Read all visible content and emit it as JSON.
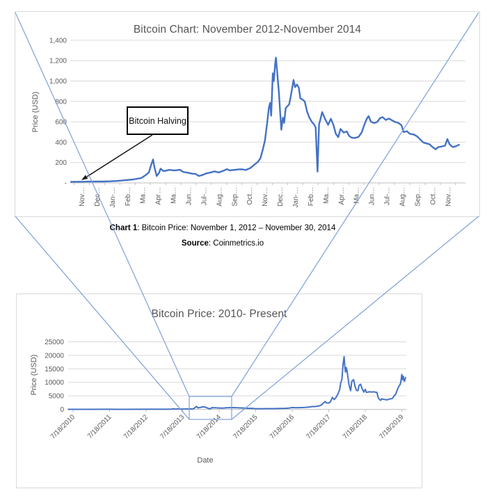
{
  "figure": {
    "caption_label": "Chart 1",
    "caption_text": ": Bitcoin Price: November 1, 2012 – November 30, 2014",
    "source_label": "Source",
    "source_text": ": Coinmetrics.io"
  },
  "colors": {
    "price_line": "#4472C4",
    "gridline": "#D9D9D9",
    "axis_line": "#BFBFBF",
    "tick_text": "#595959",
    "title_text": "#545454",
    "connector_blue": "#7E9FD8",
    "annotation_border": "#000000"
  },
  "chart_data": [
    {
      "id": "top",
      "type": "line",
      "title": "Bitcoin Chart: November 2012-November 2014",
      "xlabel": "",
      "ylabel": "Price (USD)",
      "ylim": [
        0,
        1400
      ],
      "ytick_step": 200,
      "ytick_labels": [
        "-",
        "200",
        "400",
        "600",
        "800",
        "1,000",
        "1,200",
        "1,400"
      ],
      "xtick_labels": [
        "Nov…",
        "Dec…",
        "Jan-…",
        "Feb…",
        "Ma…",
        "Apr…",
        "Ma…",
        "Jun…",
        "Jul-…",
        "Aug…",
        "Sep…",
        "Oct…",
        "Nov…",
        "Dec…",
        "Jan-…",
        "Feb…",
        "Ma…",
        "Apr…",
        "Ma…",
        "Jun…",
        "Jul-…",
        "Aug…",
        "Sep…",
        "Oct…",
        "Nov…"
      ],
      "grid": true,
      "legend": false,
      "annotation": {
        "text": "Bitcoin Halving",
        "arrow_points_to": "late November 2012 on the price line"
      },
      "series": [
        {
          "name": "Bitcoin price (USD)",
          "x_unit": "months since Nov 1 2012",
          "points": [
            [
              0,
              11
            ],
            [
              0.5,
              11.5
            ],
            [
              0.9,
              12.4
            ],
            [
              1,
              13
            ],
            [
              1.5,
              13.4
            ],
            [
              2,
              13.5
            ],
            [
              2.5,
              15.5
            ],
            [
              3,
              20
            ],
            [
              3.6,
              29
            ],
            [
              4,
              34
            ],
            [
              4.5,
              47
            ],
            [
              4.8,
              77
            ],
            [
              5,
              104
            ],
            [
              5.15,
              180
            ],
            [
              5.27,
              230
            ],
            [
              5.35,
              160
            ],
            [
              5.5,
              68
            ],
            [
              5.65,
              98
            ],
            [
              5.75,
              140
            ],
            [
              5.9,
              120
            ],
            [
              6,
              117
            ],
            [
              6.3,
              128
            ],
            [
              6.6,
              122
            ],
            [
              7,
              129
            ],
            [
              7.2,
              108
            ],
            [
              7.5,
              100
            ],
            [
              7.8,
              90
            ],
            [
              8,
              88
            ],
            [
              8.2,
              68
            ],
            [
              8.4,
              76
            ],
            [
              8.7,
              94
            ],
            [
              9,
              104
            ],
            [
              9.2,
              113
            ],
            [
              9.5,
              103
            ],
            [
              9.8,
              120
            ],
            [
              10,
              135
            ],
            [
              10.2,
              123
            ],
            [
              10.5,
              128
            ],
            [
              10.8,
              134
            ],
            [
              11,
              133
            ],
            [
              11.2,
              126
            ],
            [
              11.5,
              145
            ],
            [
              11.8,
              183
            ],
            [
              12,
              207
            ],
            [
              12.15,
              240
            ],
            [
              12.3,
              320
            ],
            [
              12.45,
              420
            ],
            [
              12.6,
              600
            ],
            [
              12.7,
              740
            ],
            [
              12.78,
              785
            ],
            [
              12.85,
              660
            ],
            [
              12.95,
              1075
            ],
            [
              13.02,
              1000
            ],
            [
              13.1,
              1160
            ],
            [
              13.15,
              1230
            ],
            [
              13.25,
              1055
            ],
            [
              13.35,
              880
            ],
            [
              13.42,
              700
            ],
            [
              13.5,
              522
            ],
            [
              13.6,
              640
            ],
            [
              13.68,
              590
            ],
            [
              13.78,
              735
            ],
            [
              13.9,
              755
            ],
            [
              14,
              770
            ],
            [
              14.1,
              845
            ],
            [
              14.2,
              935
            ],
            [
              14.28,
              1010
            ],
            [
              14.38,
              940
            ],
            [
              14.5,
              965
            ],
            [
              14.62,
              935
            ],
            [
              14.72,
              830
            ],
            [
              14.85,
              820
            ],
            [
              15,
              800
            ],
            [
              15.15,
              700
            ],
            [
              15.3,
              640
            ],
            [
              15.45,
              600
            ],
            [
              15.6,
              575
            ],
            [
              15.7,
              545
            ],
            [
              15.82,
              111
            ],
            [
              15.92,
              575
            ],
            [
              16,
              620
            ],
            [
              16.12,
              695
            ],
            [
              16.3,
              630
            ],
            [
              16.5,
              570
            ],
            [
              16.68,
              630
            ],
            [
              16.85,
              565
            ],
            [
              17,
              480
            ],
            [
              17.15,
              450
            ],
            [
              17.3,
              530
            ],
            [
              17.5,
              495
            ],
            [
              17.7,
              505
            ],
            [
              17.85,
              462
            ],
            [
              18,
              445
            ],
            [
              18.2,
              440
            ],
            [
              18.45,
              452
            ],
            [
              18.65,
              495
            ],
            [
              18.85,
              580
            ],
            [
              19,
              635
            ],
            [
              19.1,
              655
            ],
            [
              19.25,
              600
            ],
            [
              19.45,
              588
            ],
            [
              19.65,
              598
            ],
            [
              19.85,
              638
            ],
            [
              20,
              645
            ],
            [
              20.2,
              618
            ],
            [
              20.4,
              632
            ],
            [
              20.6,
              615
            ],
            [
              20.8,
              598
            ],
            [
              21,
              590
            ],
            [
              21.2,
              568
            ],
            [
              21.35,
              498
            ],
            [
              21.55,
              508
            ],
            [
              21.75,
              482
            ],
            [
              22,
              475
            ],
            [
              22.2,
              458
            ],
            [
              22.4,
              428
            ],
            [
              22.6,
              398
            ],
            [
              22.8,
              388
            ],
            [
              23,
              380
            ],
            [
              23.2,
              352
            ],
            [
              23.4,
              330
            ],
            [
              23.55,
              350
            ],
            [
              23.75,
              356
            ],
            [
              24,
              365
            ],
            [
              24.15,
              430
            ],
            [
              24.3,
              378
            ],
            [
              24.5,
              352
            ],
            [
              24.7,
              360
            ],
            [
              24.9,
              375
            ]
          ]
        }
      ]
    },
    {
      "id": "bottom",
      "type": "line",
      "title": "Bitcoin Price: 2010- Present",
      "xlabel": "Date",
      "ylabel": "Price (USD)",
      "ylim": [
        0,
        25000
      ],
      "ytick_step": 5000,
      "ytick_labels": [
        "0",
        "5000",
        "10000",
        "15000",
        "20000",
        "25000"
      ],
      "xtick_labels": [
        "7/18/2010",
        "7/18/2011",
        "7/18/2012",
        "7/18/2013",
        "7/18/2014",
        "7/18/2015",
        "7/18/2016",
        "7/18/2017",
        "7/18/2018",
        "7/18/2019"
      ],
      "grid": true,
      "legend": false,
      "highlight_rectangle": "Nov 2012 - Nov 2014 region, linked by lines to the chart above",
      "series": [
        {
          "name": "Bitcoin price (USD)",
          "x_unit": "years since 7/18/2010",
          "points": [
            [
              -0.13,
              0.06
            ],
            [
              0,
              0.07
            ],
            [
              0.5,
              0.3
            ],
            [
              0.95,
              30
            ],
            [
              1.2,
              5
            ],
            [
              1.5,
              5
            ],
            [
              2,
              13
            ],
            [
              2.4,
              13
            ],
            [
              2.6,
              34
            ],
            [
              2.72,
              93
            ],
            [
              2.75,
              230
            ],
            [
              2.8,
              70
            ],
            [
              2.85,
              120
            ],
            [
              3,
              100
            ],
            [
              3.1,
              125
            ],
            [
              3.25,
              135
            ],
            [
              3.3,
              200
            ],
            [
              3.38,
              1075
            ],
            [
              3.42,
              522
            ],
            [
              3.5,
              760
            ],
            [
              3.55,
              935
            ],
            [
              3.62,
              800
            ],
            [
              3.75,
              111
            ],
            [
              3.8,
              630
            ],
            [
              3.9,
              570
            ],
            [
              4,
              480
            ],
            [
              4.1,
              450
            ],
            [
              4.2,
              590
            ],
            [
              4.35,
              635
            ],
            [
              4.5,
              590
            ],
            [
              4.65,
              480
            ],
            [
              4.8,
              375
            ],
            [
              4.9,
              350
            ],
            [
              5,
              240
            ],
            [
              5.1,
              220
            ],
            [
              5.2,
              235
            ],
            [
              5.35,
              250
            ],
            [
              5.5,
              270
            ],
            [
              5.65,
              300
            ],
            [
              5.8,
              370
            ],
            [
              5.9,
              450
            ],
            [
              6,
              660
            ],
            [
              6.05,
              620
            ],
            [
              6.2,
              610
            ],
            [
              6.35,
              730
            ],
            [
              6.5,
              900
            ],
            [
              6.55,
              1050
            ],
            [
              6.6,
              1000
            ],
            [
              6.72,
              1190
            ],
            [
              6.8,
              1600
            ],
            [
              6.85,
              2300
            ],
            [
              6.9,
              2900
            ],
            [
              6.93,
              2400
            ],
            [
              7,
              2300
            ],
            [
              7.05,
              2800
            ],
            [
              7.1,
              4400
            ],
            [
              7.15,
              3600
            ],
            [
              7.2,
              4400
            ],
            [
              7.25,
              5600
            ],
            [
              7.3,
              7400
            ],
            [
              7.33,
              9900
            ],
            [
              7.36,
              11000
            ],
            [
              7.39,
              16500
            ],
            [
              7.42,
              19500
            ],
            [
              7.44,
              16000
            ],
            [
              7.46,
              13800
            ],
            [
              7.48,
              15500
            ],
            [
              7.5,
              14300
            ],
            [
              7.53,
              11500
            ],
            [
              7.56,
              8800
            ],
            [
              7.6,
              6900
            ],
            [
              7.63,
              10300
            ],
            [
              7.68,
              11000
            ],
            [
              7.72,
              8500
            ],
            [
              7.76,
              7000
            ],
            [
              7.8,
              6900
            ],
            [
              7.83,
              8900
            ],
            [
              7.87,
              9300
            ],
            [
              7.92,
              7500
            ],
            [
              7.96,
              6400
            ],
            [
              8,
              7400
            ],
            [
              8.03,
              6300
            ],
            [
              8.07,
              6400
            ],
            [
              8.12,
              6500
            ],
            [
              8.17,
              6400
            ],
            [
              8.22,
              6500
            ],
            [
              8.27,
              6400
            ],
            [
              8.32,
              6300
            ],
            [
              8.35,
              4500
            ],
            [
              8.38,
              3800
            ],
            [
              8.42,
              3300
            ],
            [
              8.45,
              3900
            ],
            [
              8.5,
              3700
            ],
            [
              8.55,
              3600
            ],
            [
              8.6,
              3500
            ],
            [
              8.65,
              3800
            ],
            [
              8.7,
              3900
            ],
            [
              8.75,
              4100
            ],
            [
              8.8,
              5200
            ],
            [
              8.83,
              5500
            ],
            [
              8.87,
              7000
            ],
            [
              8.9,
              8000
            ],
            [
              8.93,
              8700
            ],
            [
              8.96,
              9300
            ],
            [
              8.98,
              10800
            ],
            [
              9,
              12900
            ],
            [
              9.02,
              11000
            ],
            [
              9.04,
              12300
            ],
            [
              9.06,
              10600
            ],
            [
              9.08,
              10500
            ],
            [
              9.1,
              11800
            ]
          ]
        }
      ]
    }
  ]
}
